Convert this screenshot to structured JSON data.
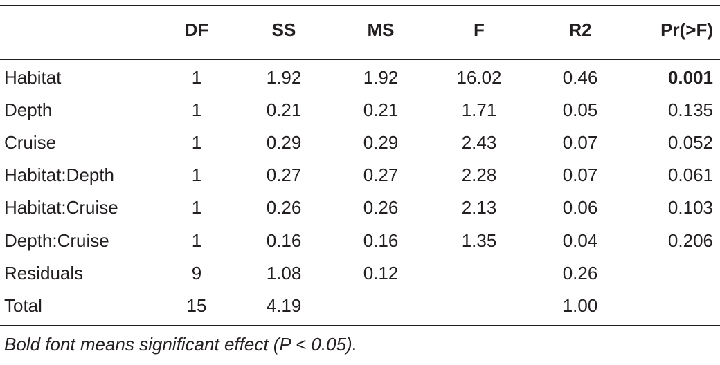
{
  "table": {
    "headers": [
      "",
      "DF",
      "SS",
      "MS",
      "F",
      "R2",
      "Pr(>F)"
    ],
    "rows": [
      {
        "cells": [
          "Habitat",
          "1",
          "1.92",
          "1.92",
          "16.02",
          "0.46",
          "0.001"
        ],
        "bold_last": true
      },
      {
        "cells": [
          "Depth",
          "1",
          "0.21",
          "0.21",
          "1.71",
          "0.05",
          "0.135"
        ]
      },
      {
        "cells": [
          "Cruise",
          "1",
          "0.29",
          "0.29",
          "2.43",
          "0.07",
          "0.052"
        ]
      },
      {
        "cells": [
          "Habitat:Depth",
          "1",
          "0.27",
          "0.27",
          "2.28",
          "0.07",
          "0.061"
        ]
      },
      {
        "cells": [
          "Habitat:Cruise",
          "1",
          "0.26",
          "0.26",
          "2.13",
          "0.06",
          "0.103"
        ]
      },
      {
        "cells": [
          "Depth:Cruise",
          "1",
          "0.16",
          "0.16",
          "1.35",
          "0.04",
          "0.206"
        ]
      },
      {
        "cells": [
          "Residuals",
          "9",
          "1.08",
          "0.12",
          "",
          "0.26",
          ""
        ]
      },
      {
        "cells": [
          "Total",
          "15",
          "4.19",
          "",
          "",
          "1.00",
          ""
        ]
      }
    ]
  },
  "footnote": "Bold font means significant effect (P < 0.05)."
}
